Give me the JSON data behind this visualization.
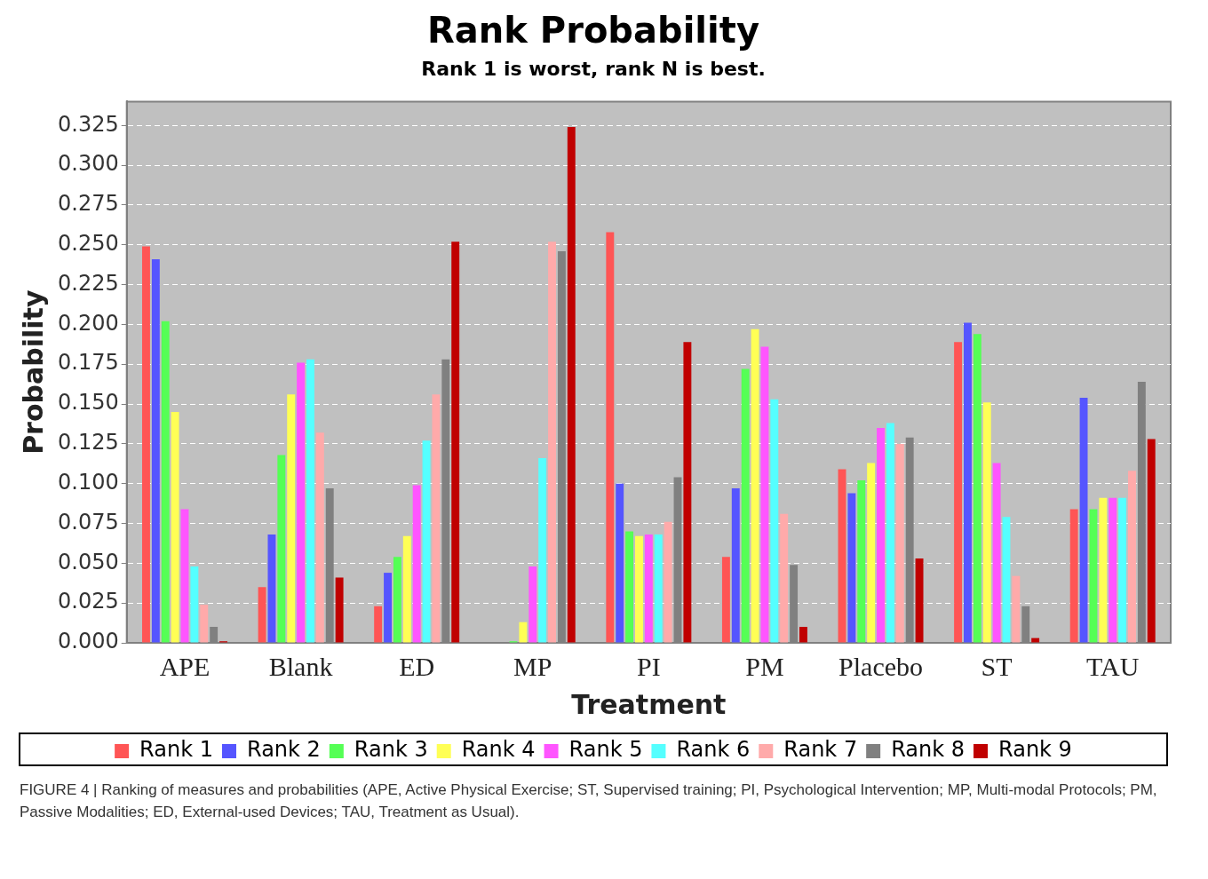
{
  "chart_data": {
    "type": "bar",
    "title": "Rank Probability",
    "subtitle": "Rank 1 is worst, rank N is best.",
    "xlabel": "Treatment",
    "ylabel": "Probability",
    "categories": [
      "APE",
      "Blank",
      "ED",
      "MP",
      "PI",
      "PM",
      "Placebo",
      "ST",
      "TAU"
    ],
    "series": [
      {
        "name": "Rank 1",
        "color": "#ff5555",
        "values": [
          0.249,
          0.035,
          0.023,
          0,
          0.258,
          0.054,
          0.109,
          0.189,
          0.084
        ]
      },
      {
        "name": "Rank 2",
        "color": "#5555ff",
        "values": [
          0.241,
          0.068,
          0.044,
          0,
          0.1,
          0.097,
          0.094,
          0.201,
          0.154
        ]
      },
      {
        "name": "Rank 3",
        "color": "#55ff55",
        "values": [
          0.202,
          0.118,
          0.054,
          0.001,
          0.07,
          0.172,
          0.102,
          0.194,
          0.084
        ]
      },
      {
        "name": "Rank 4",
        "color": "#ffff55",
        "values": [
          0.145,
          0.156,
          0.067,
          0.013,
          0.067,
          0.197,
          0.113,
          0.151,
          0.091
        ]
      },
      {
        "name": "Rank 5",
        "color": "#ff55ff",
        "values": [
          0.084,
          0.176,
          0.099,
          0.048,
          0.068,
          0.186,
          0.135,
          0.113,
          0.091
        ]
      },
      {
        "name": "Rank 6",
        "color": "#55ffff",
        "values": [
          0.048,
          0.178,
          0.127,
          0.116,
          0.068,
          0.153,
          0.138,
          0.079,
          0.091
        ]
      },
      {
        "name": "Rank 7",
        "color": "#ffaaaa",
        "values": [
          0.024,
          0.132,
          0.156,
          0.252,
          0.076,
          0.081,
          0.125,
          0.042,
          0.108
        ]
      },
      {
        "name": "Rank 8",
        "color": "#808080",
        "values": [
          0.01,
          0.097,
          0.178,
          0.246,
          0.104,
          0.049,
          0.129,
          0.023,
          0.164
        ]
      },
      {
        "name": "Rank 9",
        "color": "#c00000",
        "values": [
          0.001,
          0.041,
          0.252,
          0.324,
          0.189,
          0.01,
          0.053,
          0.003,
          0.128
        ]
      }
    ],
    "ylim": [
      0,
      0.34
    ],
    "yticks": [
      {
        "value": 0,
        "label": "0.000"
      },
      {
        "value": 0.025,
        "label": "0.025"
      },
      {
        "value": 0.05,
        "label": "0.050"
      },
      {
        "value": 0.075,
        "label": "0.075"
      },
      {
        "value": 0.1,
        "label": "0.100"
      },
      {
        "value": 0.125,
        "label": "0.125"
      },
      {
        "value": 0.15,
        "label": "0.150"
      },
      {
        "value": 0.175,
        "label": "0.175"
      },
      {
        "value": 0.2,
        "label": "0.200"
      },
      {
        "value": 0.225,
        "label": "0.225"
      },
      {
        "value": 0.25,
        "label": "0.250"
      },
      {
        "value": 0.275,
        "label": "0.275"
      },
      {
        "value": 0.3,
        "label": "0.300"
      },
      {
        "value": 0.325,
        "label": "0.325"
      }
    ],
    "grid": "y",
    "legend": "bottom",
    "annotations": [
      "FIGURE 4 | Ranking of measures and probabilities (APE, Active Physical Exercise; ST, Supervised training; PI, Psychological Intervention; MP, Multi-modal Protocols; PM, Passive Modalities; ED, External-used Devices; TAU, Treatment as Usual)."
    ]
  }
}
